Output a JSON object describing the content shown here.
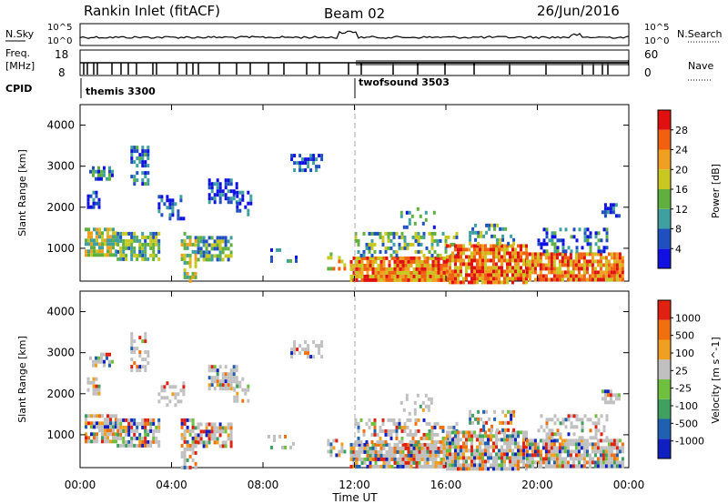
{
  "header": {
    "station": "Rankin Inlet (fitACF)",
    "beam": "Beam 02",
    "date": "26/Jun/2016"
  },
  "left_labels": {
    "nsky": "N.Sky",
    "freq": "Freq.",
    "freq_unit": "[MHz]",
    "cpid": "CPID"
  },
  "right_labels": {
    "nsearch": "N.Search",
    "nave": "Nave"
  },
  "axis_text": {
    "nsky_top": "10^5",
    "nsky_bot": "10^0",
    "freq_top": "18",
    "freq_bot": "8",
    "nsearch_top": "10^5",
    "nsearch_bot": "10^0",
    "nave_top": "60",
    "nave_bot": "0"
  },
  "cpid": {
    "mode1": "themis 3300",
    "mode2": "twofsound 3503"
  },
  "chart_data": [
    {
      "type": "heatmap",
      "name": "power",
      "ylabel": "Slant Range [km]",
      "yticks": [
        1000,
        2000,
        3000,
        4000
      ],
      "ylim": [
        200,
        4500
      ],
      "colorbar_label": "Power [dB]",
      "colorbar_ticks": [
        "28",
        "24",
        "20",
        "16",
        "12",
        "8",
        "4"
      ],
      "colors": [
        "#1010e0",
        "#2050c0",
        "#40a0a0",
        "#60b040",
        "#c8c820",
        "#f0a020",
        "#f06010",
        "#e01010"
      ]
    },
    {
      "type": "heatmap",
      "name": "velocity",
      "ylabel": "Slant Range [km]",
      "yticks": [
        1000,
        2000,
        3000,
        4000
      ],
      "ylim": [
        200,
        4500
      ],
      "colorbar_label": "Velocity [m s^-1]",
      "colorbar_ticks": [
        "1000",
        "500",
        "100",
        "25",
        "-25",
        "-100",
        "-500",
        "-1000"
      ],
      "colors": [
        "#1020c0",
        "#2060b0",
        "#40a060",
        "#70c040",
        "#c0c0c0",
        "#f0a020",
        "#f07010",
        "#e02010"
      ]
    }
  ],
  "x_axis": {
    "label": "Time UT",
    "ticks": [
      "00:00",
      "04:00",
      "08:00",
      "12:00",
      "16:00",
      "20:00",
      "00:00"
    ]
  }
}
